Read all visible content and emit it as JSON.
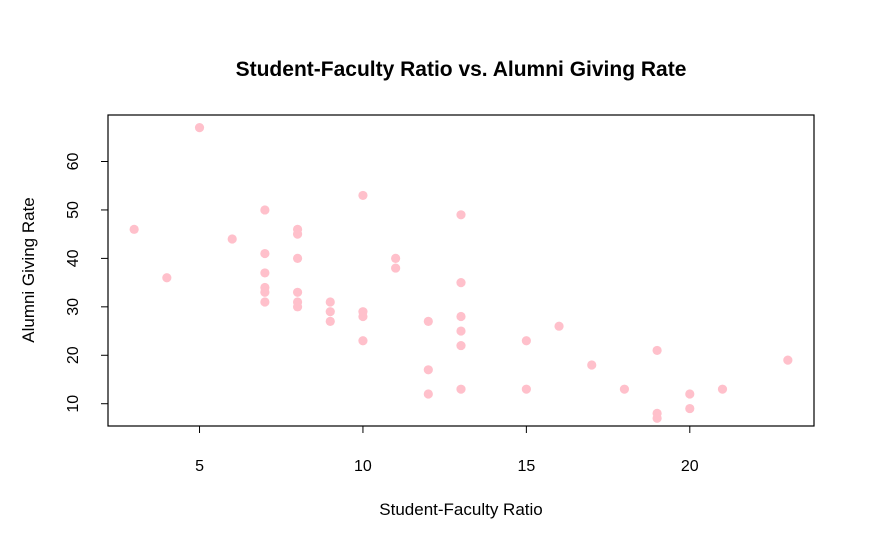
{
  "chart_data": {
    "type": "scatter",
    "title": "Student-Faculty Ratio vs. Alumni Giving Rate",
    "xlabel": "Student-Faculty Ratio",
    "ylabel": "Alumni Giving Rate",
    "xlim": [
      2.2,
      23.8
    ],
    "ylim": [
      5.4,
      69.6
    ],
    "xticks": [
      5,
      10,
      15,
      20
    ],
    "yticks": [
      10,
      20,
      30,
      40,
      50,
      60
    ],
    "point_color": "#ffc0cb",
    "grid": false,
    "legend": false,
    "points": [
      {
        "x": 3,
        "y": 46
      },
      {
        "x": 4,
        "y": 36
      },
      {
        "x": 5,
        "y": 67
      },
      {
        "x": 6,
        "y": 44
      },
      {
        "x": 7,
        "y": 50
      },
      {
        "x": 7,
        "y": 41
      },
      {
        "x": 7,
        "y": 37
      },
      {
        "x": 7,
        "y": 34
      },
      {
        "x": 7,
        "y": 33
      },
      {
        "x": 7,
        "y": 31
      },
      {
        "x": 8,
        "y": 46
      },
      {
        "x": 8,
        "y": 45
      },
      {
        "x": 8,
        "y": 40
      },
      {
        "x": 8,
        "y": 33
      },
      {
        "x": 8,
        "y": 31
      },
      {
        "x": 8,
        "y": 30
      },
      {
        "x": 9,
        "y": 31
      },
      {
        "x": 9,
        "y": 29
      },
      {
        "x": 9,
        "y": 27
      },
      {
        "x": 10,
        "y": 53
      },
      {
        "x": 10,
        "y": 29
      },
      {
        "x": 10,
        "y": 28
      },
      {
        "x": 10,
        "y": 23
      },
      {
        "x": 11,
        "y": 40
      },
      {
        "x": 11,
        "y": 38
      },
      {
        "x": 12,
        "y": 27
      },
      {
        "x": 12,
        "y": 17
      },
      {
        "x": 12,
        "y": 12
      },
      {
        "x": 13,
        "y": 49
      },
      {
        "x": 13,
        "y": 35
      },
      {
        "x": 13,
        "y": 28
      },
      {
        "x": 13,
        "y": 25
      },
      {
        "x": 13,
        "y": 22
      },
      {
        "x": 13,
        "y": 13
      },
      {
        "x": 15,
        "y": 23
      },
      {
        "x": 15,
        "y": 13
      },
      {
        "x": 16,
        "y": 26
      },
      {
        "x": 17,
        "y": 18
      },
      {
        "x": 18,
        "y": 13
      },
      {
        "x": 19,
        "y": 21
      },
      {
        "x": 19,
        "y": 8
      },
      {
        "x": 19,
        "y": 7
      },
      {
        "x": 20,
        "y": 12
      },
      {
        "x": 20,
        "y": 9
      },
      {
        "x": 21,
        "y": 13
      },
      {
        "x": 23,
        "y": 19
      }
    ]
  }
}
